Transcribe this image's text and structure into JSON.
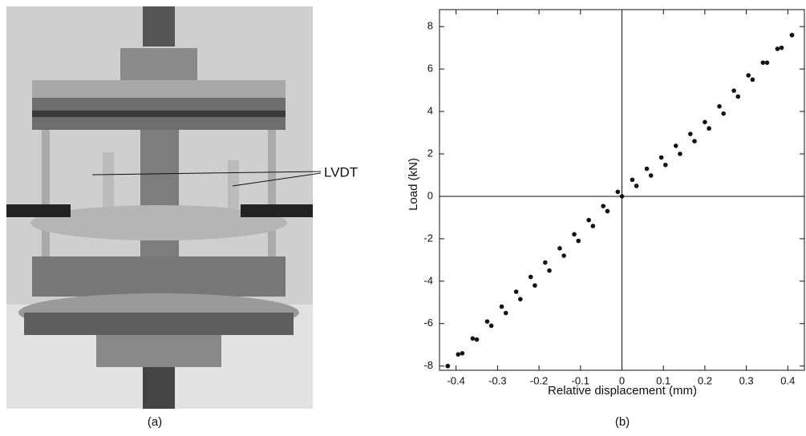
{
  "photo": {
    "annotation": "LVDT",
    "caption": "(a)"
  },
  "chart_data": {
    "type": "scatter",
    "caption": "(b)",
    "xlabel": "Relative displacement (mm)",
    "ylabel": "Load (kN)",
    "xlim": [
      -0.44,
      0.44
    ],
    "ylim": [
      -8.2,
      8.8
    ],
    "xticks": [
      -0.4,
      -0.3,
      -0.2,
      -0.1,
      0,
      0.1,
      0.2,
      0.3,
      0.4
    ],
    "yticks": [
      -8,
      -6,
      -4,
      -2,
      0,
      2,
      4,
      6,
      8
    ],
    "zero_lines": true,
    "series": [
      {
        "color": "#111111",
        "x": [
          0.41,
          0.375,
          0.34,
          0.305,
          0.27,
          0.235,
          0.2,
          0.165,
          0.13,
          0.095,
          0.06,
          0.025,
          -0.01,
          -0.045,
          -0.08,
          -0.115,
          -0.15,
          -0.185,
          -0.22,
          -0.255,
          -0.29,
          -0.325,
          -0.36,
          -0.395,
          -0.42
        ],
        "values": [
          7.6,
          6.95,
          6.3,
          5.7,
          4.98,
          4.24,
          3.5,
          2.94,
          2.38,
          1.83,
          1.3,
          0.78,
          0.21,
          -0.46,
          -1.12,
          -1.79,
          -2.45,
          -3.12,
          -3.8,
          -4.5,
          -5.2,
          -5.9,
          -6.7,
          -7.45,
          -8.0
        ]
      },
      {
        "color": "#111111",
        "x": [
          -0.42,
          -0.385,
          -0.35,
          -0.315,
          -0.28,
          -0.245,
          -0.21,
          -0.175,
          -0.14,
          -0.105,
          -0.07,
          -0.035,
          0,
          0.035,
          0.07,
          0.105,
          0.14,
          0.175,
          0.21,
          0.245,
          0.28,
          0.315,
          0.35,
          0.385,
          0.41
        ],
        "values": [
          -8.0,
          -7.4,
          -6.75,
          -6.1,
          -5.5,
          -4.85,
          -4.2,
          -3.5,
          -2.8,
          -2.1,
          -1.4,
          -0.7,
          0,
          0.49,
          0.98,
          1.48,
          2.0,
          2.6,
          3.2,
          3.9,
          4.7,
          5.5,
          6.3,
          7.0,
          7.6
        ]
      }
    ]
  }
}
